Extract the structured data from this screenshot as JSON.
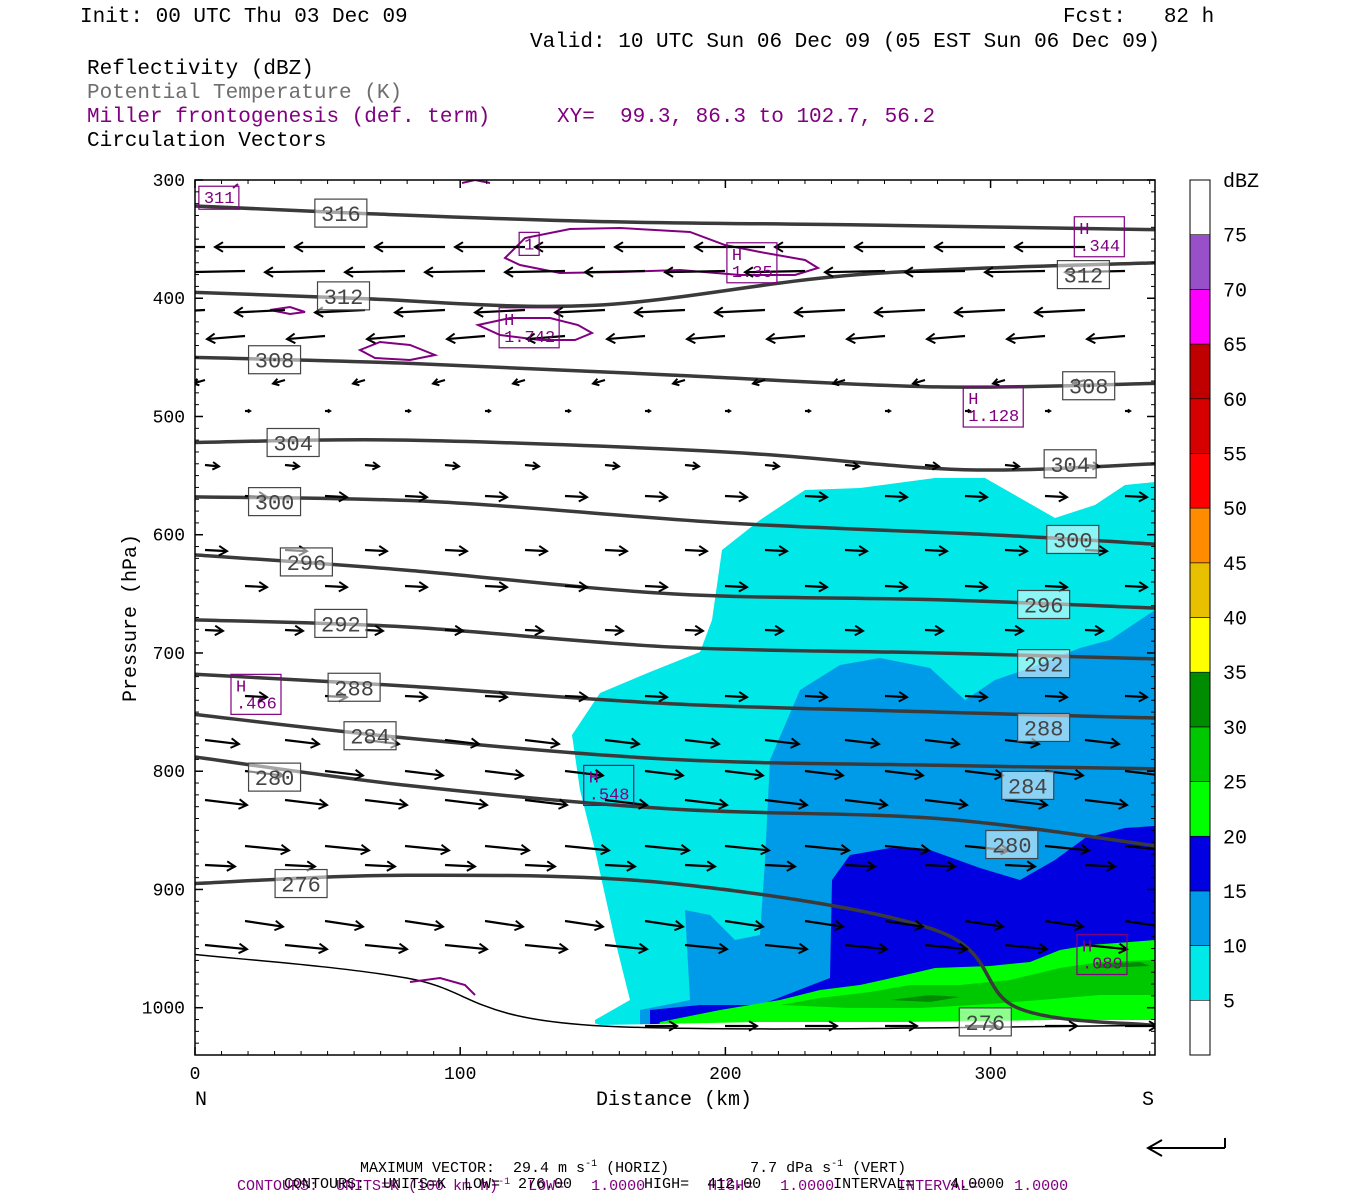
{
  "header": {
    "init": "Init: 00 UTC Thu 03 Dec 09",
    "fcst": "Fcst:   82 h",
    "valid": "Valid: 10 UTC Sun 06 Dec 09 (05 EST Sun 06 Dec 09)",
    "line1": "Reflectivity (dBZ)",
    "line2": "Potential Temperature (K)",
    "line3": "Miller frontogenesis (def. term)",
    "line3_xy": "XY=  99.3, 86.3 to 102.7, 56.2",
    "line4": "Circulation Vectors"
  },
  "colors": {
    "theta": "#3a3a3a",
    "frontogenesis": "#800080",
    "potential_temp_label": "#6e6e6e",
    "vectors": "#000000"
  },
  "chart_data": {
    "type": "cross-section",
    "xlabel": "Distance (km)",
    "ylabel": "Pressure (hPa)",
    "xlim": [
      0,
      362
    ],
    "ylim": [
      1040,
      300
    ],
    "x_ticks": [
      "0",
      "100",
      "200",
      "300"
    ],
    "x_tick_values": [
      0,
      100,
      200,
      300
    ],
    "y_ticks": [
      "300",
      "400",
      "500",
      "600",
      "700",
      "800",
      "900",
      "1000"
    ],
    "y_tick_values": [
      300,
      400,
      500,
      600,
      700,
      800,
      900,
      1000
    ],
    "end_labels": {
      "left": "N",
      "right": "S"
    },
    "colorbar": {
      "unit": "dBZ",
      "levels": [
        5,
        10,
        15,
        20,
        25,
        30,
        35,
        40,
        45,
        50,
        55,
        60,
        65,
        70,
        75
      ],
      "labels": [
        "5",
        "10",
        "15",
        "20",
        "25",
        "30",
        "35",
        "40",
        "45",
        "50",
        "55",
        "60",
        "65",
        "70",
        "75"
      ],
      "colors": [
        "#00e8e8",
        "#009be8",
        "#0000e0",
        "#00ff00",
        "#00c800",
        "#008c00",
        "#ffff00",
        "#e8c000",
        "#ff8c00",
        "#ff0000",
        "#d60000",
        "#c00000",
        "#ff00ff",
        "#9850c8",
        "#ffffff"
      ]
    },
    "theta_contours": [
      {
        "label": "316",
        "x": [
          0,
          60,
          150,
          250,
          362
        ],
        "p": [
          322,
          328,
          335,
          338,
          342
        ]
      },
      {
        "label": "312",
        "x": [
          0,
          60,
          150,
          250,
          362
        ],
        "p": [
          395,
          400,
          406,
          380,
          370
        ]
      },
      {
        "label": "308",
        "x": [
          0,
          80,
          180,
          280,
          362
        ],
        "p": [
          450,
          455,
          465,
          475,
          472
        ]
      },
      {
        "label": "304",
        "x": [
          0,
          80,
          200,
          290,
          362
        ],
        "p": [
          522,
          520,
          530,
          545,
          540
        ]
      },
      {
        "label": "300",
        "x": [
          0,
          90,
          200,
          300,
          362
        ],
        "p": [
          568,
          572,
          590,
          600,
          608
        ]
      },
      {
        "label": "296",
        "x": [
          0,
          80,
          180,
          280,
          362
        ],
        "p": [
          617,
          630,
          650,
          655,
          662
        ]
      },
      {
        "label": "292",
        "x": [
          0,
          80,
          180,
          280,
          362
        ],
        "p": [
          672,
          678,
          695,
          700,
          705
        ]
      },
      {
        "label": "288",
        "x": [
          0,
          80,
          180,
          280,
          362
        ],
        "p": [
          718,
          728,
          743,
          750,
          755
        ]
      },
      {
        "label": "284",
        "x": [
          0,
          80,
          180,
          280,
          362
        ],
        "p": [
          752,
          772,
          790,
          795,
          798
        ]
      },
      {
        "label": "280",
        "x": [
          0,
          80,
          180,
          280,
          362
        ],
        "p": [
          788,
          812,
          832,
          840,
          863
        ]
      },
      {
        "label": "276",
        "x": [
          0,
          80,
          180,
          280,
          310,
          362
        ],
        "p": [
          895,
          888,
          895,
          935,
          1000,
          1015
        ]
      },
      {
        "label": "276",
        "x": [
          0,
          80,
          150,
          362
        ],
        "p": [
          955,
          975,
          1015,
          1015
        ]
      }
    ],
    "contour_labels": [
      {
        "text": "316",
        "x": 55,
        "p": 328
      },
      {
        "text": "312",
        "x": 335,
        "p": 380
      },
      {
        "text": "312",
        "x": 56,
        "p": 398
      },
      {
        "text": "308",
        "x": 30,
        "p": 452
      },
      {
        "text": "308",
        "x": 337,
        "p": 474
      },
      {
        "text": "304",
        "x": 37,
        "p": 522
      },
      {
        "text": "304",
        "x": 330,
        "p": 540
      },
      {
        "text": "300",
        "x": 30,
        "p": 572
      },
      {
        "text": "300",
        "x": 331,
        "p": 604
      },
      {
        "text": "296",
        "x": 42,
        "p": 623
      },
      {
        "text": "296",
        "x": 320,
        "p": 659
      },
      {
        "text": "292",
        "x": 55,
        "p": 675
      },
      {
        "text": "292",
        "x": 320,
        "p": 709
      },
      {
        "text": "288",
        "x": 60,
        "p": 729
      },
      {
        "text": "288",
        "x": 320,
        "p": 763
      },
      {
        "text": "284",
        "x": 66,
        "p": 770
      },
      {
        "text": "284",
        "x": 314,
        "p": 812
      },
      {
        "text": "280",
        "x": 30,
        "p": 805
      },
      {
        "text": "280",
        "x": 308,
        "p": 862
      },
      {
        "text": "276",
        "x": 40,
        "p": 895
      },
      {
        "text": "276",
        "x": 298,
        "p": 1012
      }
    ],
    "frontogenesis_maxima": [
      {
        "text": "311",
        "x": 9,
        "p": 315
      },
      {
        "text": "1",
        "x": 126,
        "p": 354
      },
      {
        "text": "H\n1.35",
        "x": 210,
        "p": 370
      },
      {
        "text": "H\n.344",
        "x": 341,
        "p": 348
      },
      {
        "text": "H\n1.742",
        "x": 126,
        "p": 425
      },
      {
        "text": "H\n1.128",
        "x": 301,
        "p": 492
      },
      {
        "text": "H\n.466",
        "x": 23,
        "p": 735
      },
      {
        "text": "H\n.548",
        "x": 156,
        "p": 812
      },
      {
        "text": "H\n.089",
        "x": 342,
        "p": 955
      }
    ]
  },
  "footer": {
    "max_vector_a": "MAXIMUM VECTOR:  29.4 m s",
    "max_vector_a_sup": "-1",
    "max_vector_b": " (HORIZ)         7.7 dPa s",
    "max_vector_b_sup": "-1",
    "max_vector_c": " (VERT)",
    "contours1_a": "CONTOURS:  UNITS=K (100 km h)",
    "contours1_sup": "-1",
    "contours1_b": "  LOW=   1.0000       HIGH=   1.0000       INTERVAL=    1.0000",
    "contours2": "CONTOURS:  UNITS=K  LOW=  276.00        HIGH=  412.00        INTERVAL=    4.0000"
  }
}
